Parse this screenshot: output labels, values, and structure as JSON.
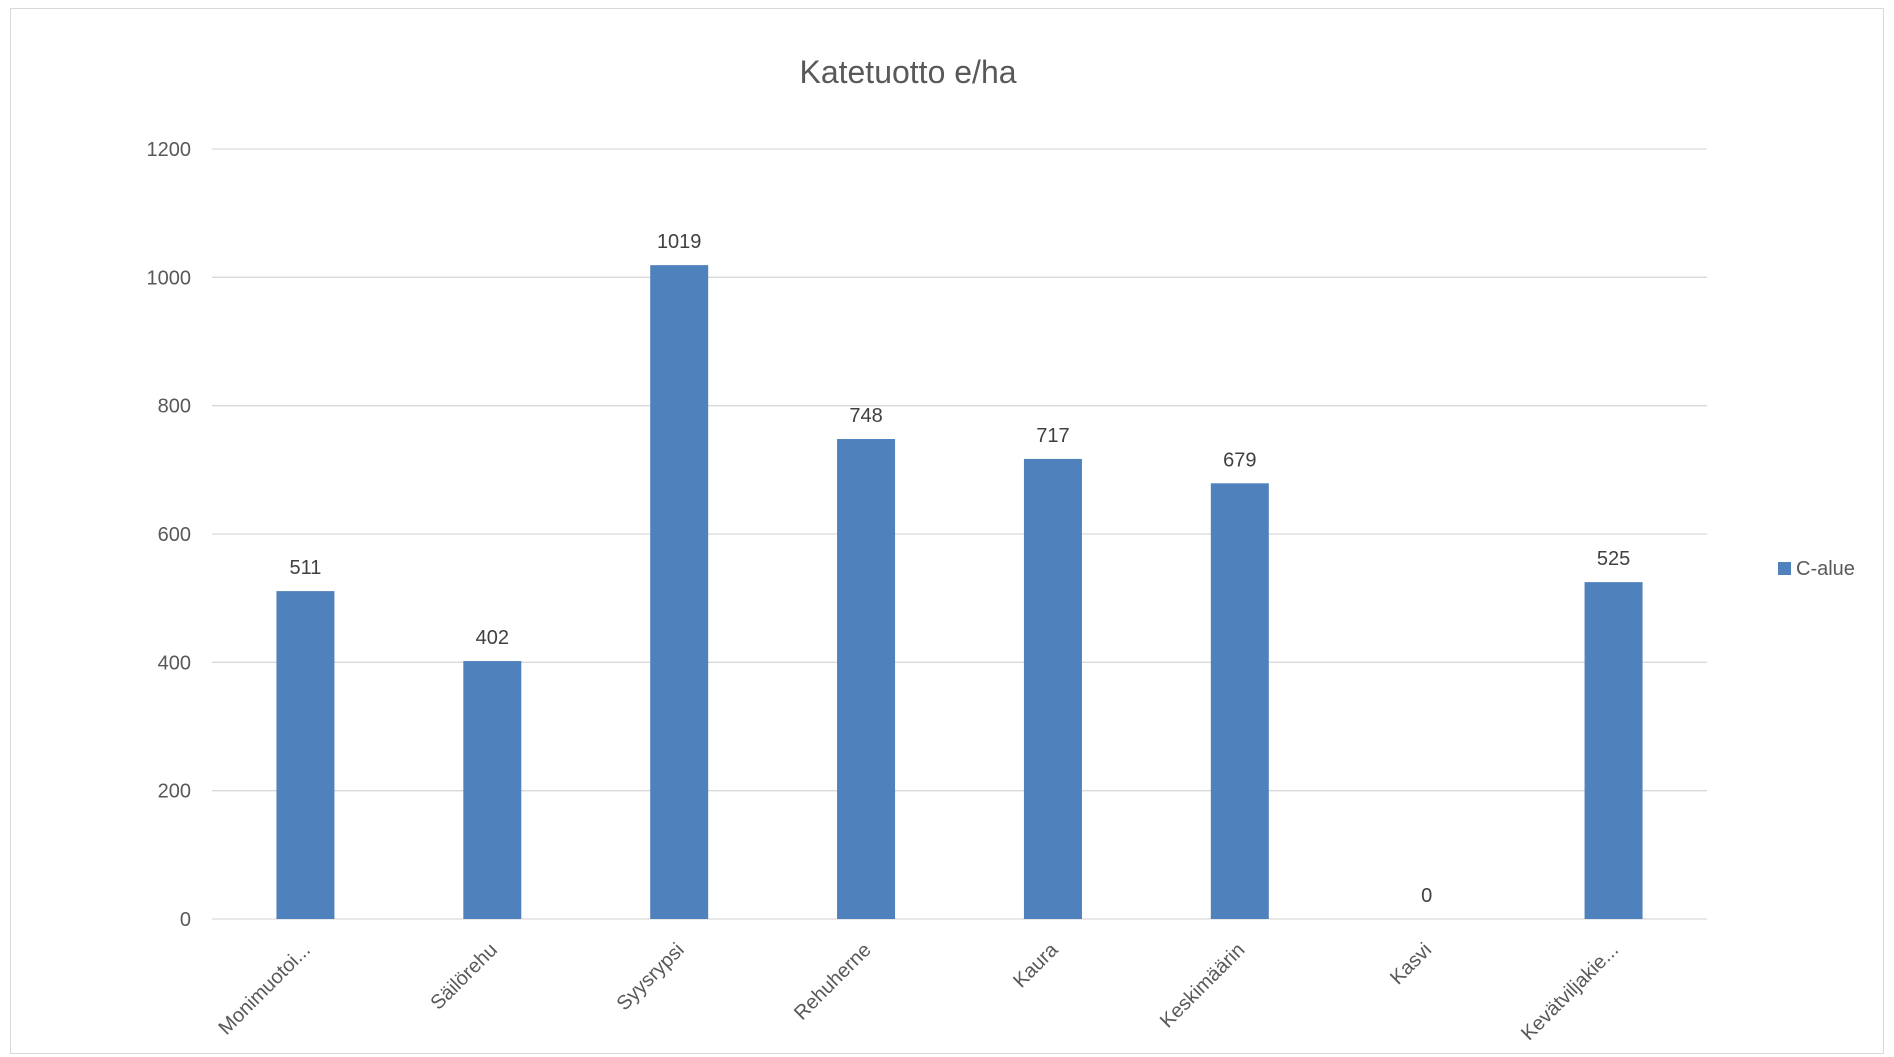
{
  "chart_data": {
    "type": "bar",
    "title": "Katetuotto e/ha",
    "categories": [
      "Monimuotoi...",
      "Säilörehu",
      "Syysrypsi",
      "Rehuherne",
      "Kaura",
      "Keskimäärin",
      "Kasvi",
      "Kevätviljakie..."
    ],
    "series": [
      {
        "name": "C-alue",
        "values": [
          511,
          402,
          1019,
          748,
          717,
          679,
          0,
          525
        ],
        "color": "#4f81bd"
      }
    ],
    "ylim": [
      0,
      1200
    ],
    "yticks": [
      0,
      200,
      400,
      600,
      800,
      1000,
      1200
    ],
    "grid": true,
    "legend_position": "right",
    "data_labels": true
  }
}
